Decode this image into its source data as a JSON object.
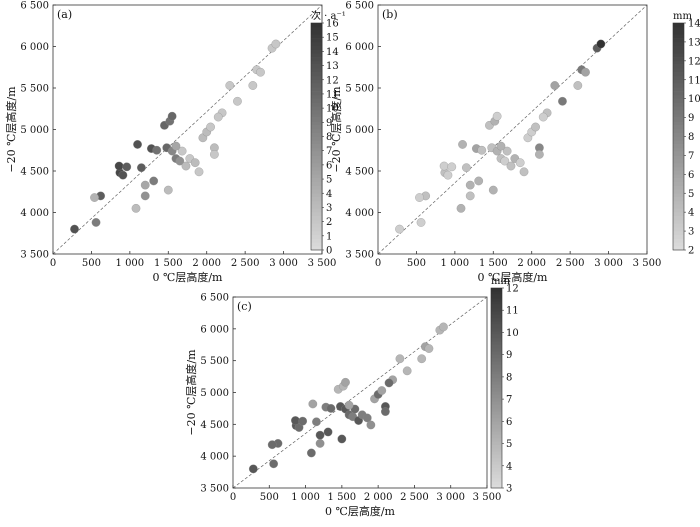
{
  "chart_data": [
    {
      "type": "scatter",
      "panel_label": "(a)",
      "xlabel": "0 ℃层高度/m",
      "ylabel": "−20 ℃层高度/m",
      "xlim": [
        0,
        3500
      ],
      "ylim": [
        3500,
        6500
      ],
      "x_ticks": [
        "0",
        "500",
        "1 000",
        "1 500",
        "2 000",
        "2 500",
        "3 000",
        "3 500"
      ],
      "y_ticks": [
        "3 500",
        "4 000",
        "4 500",
        "5 000",
        "5 500",
        "6 000",
        "6 500"
      ],
      "reference_line": "y = x, dashed",
      "colorbar": {
        "title": "次 · a⁻¹",
        "min": 0,
        "max": 16,
        "ticks": [
          "0",
          "1",
          "2",
          "3",
          "4",
          "5",
          "6",
          "7",
          "8",
          "9",
          "10",
          "11",
          "12",
          "13",
          "14",
          "15",
          "16"
        ]
      },
      "points": [
        [
          280,
          3800,
          13
        ],
        [
          560,
          3880,
          9
        ],
        [
          620,
          4200,
          12
        ],
        [
          540,
          4180,
          4
        ],
        [
          1080,
          4050,
          3
        ],
        [
          870,
          4480,
          14
        ],
        [
          910,
          4450,
          13
        ],
        [
          860,
          4560,
          14
        ],
        [
          960,
          4550,
          12
        ],
        [
          1100,
          4820,
          13
        ],
        [
          1150,
          4540,
          12
        ],
        [
          1280,
          4770,
          13
        ],
        [
          1310,
          4380,
          9
        ],
        [
          1350,
          4750,
          10
        ],
        [
          1200,
          4330,
          5
        ],
        [
          1200,
          4200,
          7
        ],
        [
          1450,
          5050,
          11
        ],
        [
          1520,
          5100,
          10
        ],
        [
          1550,
          5160,
          11
        ],
        [
          1480,
          4780,
          11
        ],
        [
          1550,
          4740,
          8
        ],
        [
          1600,
          4650,
          9
        ],
        [
          1650,
          4620,
          7
        ],
        [
          1500,
          4270,
          3
        ],
        [
          1680,
          4740,
          2
        ],
        [
          1730,
          4560,
          3
        ],
        [
          1780,
          4650,
          2
        ],
        [
          1600,
          4800,
          5
        ],
        [
          1850,
          4600,
          3
        ],
        [
          1900,
          4490,
          2
        ],
        [
          1950,
          4900,
          3
        ],
        [
          2000,
          4970,
          3
        ],
        [
          2100,
          4780,
          3
        ],
        [
          2100,
          4700,
          2
        ],
        [
          2050,
          5030,
          2
        ],
        [
          2200,
          5200,
          2
        ],
        [
          2150,
          5150,
          2
        ],
        [
          2400,
          5340,
          2
        ],
        [
          2300,
          5530,
          2
        ],
        [
          2600,
          5530,
          2
        ],
        [
          2650,
          5720,
          2
        ],
        [
          2700,
          5690,
          2
        ],
        [
          2850,
          5980,
          2
        ],
        [
          2900,
          6030,
          2
        ]
      ]
    },
    {
      "type": "scatter",
      "panel_label": "(b)",
      "xlabel": "0 ℃层高度/m",
      "ylabel": "−20 ℃层高度/m",
      "xlim": [
        0,
        3500
      ],
      "ylim": [
        3500,
        6500
      ],
      "x_ticks": [
        "0",
        "500",
        "1 000",
        "1 500",
        "2 000",
        "2 500",
        "3 000",
        "3 500"
      ],
      "y_ticks": [
        "3 500",
        "4 000",
        "4 500",
        "5 000",
        "5 500",
        "6 000",
        "6 500"
      ],
      "reference_line": "y = x, dashed",
      "colorbar": {
        "title": "mm",
        "min": 2,
        "max": 14,
        "ticks": [
          "2",
          "3",
          "4",
          "5",
          "6",
          "7",
          "8",
          "9",
          "10",
          "11",
          "12",
          "13",
          "14"
        ]
      },
      "points": [
        [
          280,
          3800,
          3
        ],
        [
          560,
          3880,
          3
        ],
        [
          620,
          4200,
          4
        ],
        [
          540,
          4180,
          3
        ],
        [
          1080,
          4050,
          5
        ],
        [
          870,
          4480,
          4
        ],
        [
          910,
          4450,
          3
        ],
        [
          860,
          4560,
          3
        ],
        [
          960,
          4550,
          3
        ],
        [
          1100,
          4820,
          5
        ],
        [
          1150,
          4540,
          4
        ],
        [
          1280,
          4770,
          6
        ],
        [
          1310,
          4380,
          5
        ],
        [
          1350,
          4750,
          4
        ],
        [
          1200,
          4330,
          5
        ],
        [
          1200,
          4200,
          4
        ],
        [
          1450,
          5050,
          4
        ],
        [
          1520,
          5100,
          5
        ],
        [
          1550,
          5160,
          3
        ],
        [
          1480,
          4780,
          4
        ],
        [
          1550,
          4740,
          5
        ],
        [
          1600,
          4650,
          4
        ],
        [
          1650,
          4620,
          3
        ],
        [
          1500,
          4270,
          5
        ],
        [
          1680,
          4740,
          4
        ],
        [
          1730,
          4560,
          4
        ],
        [
          1780,
          4650,
          5
        ],
        [
          1600,
          4800,
          5
        ],
        [
          1850,
          4600,
          3
        ],
        [
          1900,
          4490,
          4
        ],
        [
          1950,
          4900,
          3
        ],
        [
          2000,
          4970,
          3
        ],
        [
          2100,
          4780,
          8
        ],
        [
          2100,
          4700,
          5
        ],
        [
          2050,
          5030,
          4
        ],
        [
          2200,
          5200,
          4
        ],
        [
          2150,
          5150,
          3
        ],
        [
          2400,
          5340,
          9
        ],
        [
          2300,
          5530,
          6
        ],
        [
          2600,
          5530,
          4
        ],
        [
          2650,
          5720,
          9
        ],
        [
          2700,
          5690,
          6
        ],
        [
          2850,
          5980,
          11
        ],
        [
          2900,
          6030,
          14
        ]
      ]
    },
    {
      "type": "scatter",
      "panel_label": "(c)",
      "xlabel": "0 ℃层高度/m",
      "ylabel": "−20 ℃层高度/m",
      "xlim": [
        0,
        3500
      ],
      "ylim": [
        3500,
        6500
      ],
      "x_ticks": [
        "0",
        "500",
        "1 000",
        "1 500",
        "2 000",
        "2 500",
        "3 000",
        "3 500"
      ],
      "y_ticks": [
        "3 500",
        "4 000",
        "4 500",
        "5 000",
        "5 500",
        "6 000",
        "6 500"
      ],
      "reference_line": "y = x, dashed",
      "colorbar": {
        "title": "min",
        "min": 3,
        "max": 12,
        "ticks": [
          "3",
          "4",
          "5",
          "6",
          "7",
          "8",
          "9",
          "10",
          "11",
          "12"
        ]
      },
      "points": [
        [
          280,
          3800,
          10
        ],
        [
          560,
          3880,
          9
        ],
        [
          620,
          4200,
          9
        ],
        [
          540,
          4180,
          9
        ],
        [
          1080,
          4050,
          9
        ],
        [
          870,
          4480,
          10
        ],
        [
          910,
          4450,
          9
        ],
        [
          860,
          4560,
          10
        ],
        [
          960,
          4550,
          9
        ],
        [
          1100,
          4820,
          6
        ],
        [
          1150,
          4540,
          8
        ],
        [
          1280,
          4770,
          8
        ],
        [
          1310,
          4380,
          10
        ],
        [
          1350,
          4750,
          9
        ],
        [
          1200,
          4330,
          10
        ],
        [
          1200,
          4200,
          7
        ],
        [
          1450,
          5050,
          5
        ],
        [
          1520,
          5100,
          5
        ],
        [
          1550,
          5160,
          6
        ],
        [
          1480,
          4780,
          10
        ],
        [
          1550,
          4740,
          10
        ],
        [
          1600,
          4650,
          9
        ],
        [
          1650,
          4620,
          8
        ],
        [
          1500,
          4270,
          10
        ],
        [
          1680,
          4740,
          9
        ],
        [
          1730,
          4560,
          10
        ],
        [
          1780,
          4650,
          8
        ],
        [
          1600,
          4800,
          6
        ],
        [
          1850,
          4600,
          8
        ],
        [
          1900,
          4490,
          7
        ],
        [
          1950,
          4900,
          6
        ],
        [
          2000,
          4970,
          9
        ],
        [
          2100,
          4780,
          10
        ],
        [
          2100,
          4700,
          9
        ],
        [
          2050,
          5030,
          6
        ],
        [
          2200,
          5200,
          6
        ],
        [
          2150,
          5150,
          9
        ],
        [
          2400,
          5340,
          5
        ],
        [
          2300,
          5530,
          5
        ],
        [
          2600,
          5530,
          5
        ],
        [
          2650,
          5720,
          6
        ],
        [
          2700,
          5690,
          5
        ],
        [
          2850,
          5980,
          5
        ],
        [
          2900,
          6030,
          5
        ]
      ]
    }
  ]
}
